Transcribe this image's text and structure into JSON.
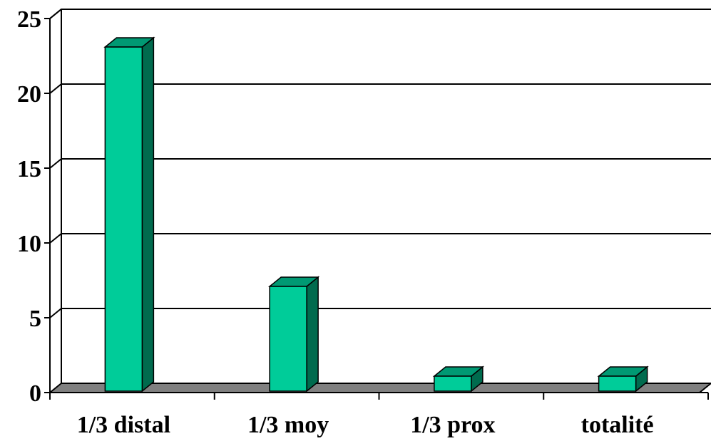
{
  "chart_data": {
    "type": "bar",
    "style": "3d-column",
    "categories": [
      "1/3 distal",
      "1/3 moy",
      "1/3 prox",
      "totalité"
    ],
    "values": [
      23,
      7,
      1,
      1
    ],
    "title": "",
    "xlabel": "",
    "ylabel": "",
    "ylim": [
      0,
      25
    ],
    "yticks": [
      0,
      5,
      10,
      15,
      20,
      25
    ],
    "grid": true,
    "legend": "none",
    "colors": {
      "bar_front": "#00CC99",
      "bar_top": "#009973",
      "bar_side": "#006B4E",
      "floor": "#808080",
      "gridline": "#000000"
    }
  }
}
